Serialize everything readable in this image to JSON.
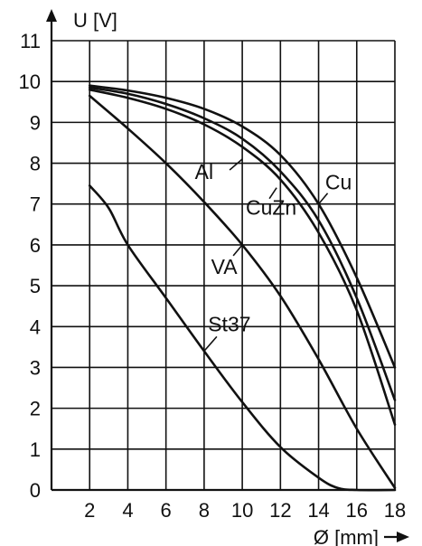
{
  "chart_data": {
    "type": "line",
    "ylabel": "U [V]",
    "xlabel": "Ø [mm]",
    "xlim": [
      0,
      18
    ],
    "ylim": [
      0,
      11
    ],
    "grid": true,
    "x_ticks": [
      2,
      4,
      6,
      8,
      10,
      12,
      14,
      16,
      18
    ],
    "y_ticks": [
      0,
      1,
      2,
      3,
      4,
      5,
      6,
      7,
      8,
      9,
      10,
      11
    ],
    "series": [
      {
        "name": "Cu",
        "points": [
          [
            2,
            9.9
          ],
          [
            4,
            9.78
          ],
          [
            6,
            9.6
          ],
          [
            8,
            9.33
          ],
          [
            10,
            8.9
          ],
          [
            12,
            8.2
          ],
          [
            14,
            7.0
          ],
          [
            16,
            5.2
          ],
          [
            18,
            3.0
          ]
        ]
      },
      {
        "name": "Al",
        "points": [
          [
            2,
            9.85
          ],
          [
            4,
            9.7
          ],
          [
            6,
            9.45
          ],
          [
            8,
            9.1
          ],
          [
            10,
            8.6
          ],
          [
            12,
            7.8
          ],
          [
            14,
            6.6
          ],
          [
            16,
            4.7
          ],
          [
            18,
            2.2
          ]
        ]
      },
      {
        "name": "CuZn",
        "points": [
          [
            2,
            9.8
          ],
          [
            4,
            9.6
          ],
          [
            6,
            9.33
          ],
          [
            8,
            8.95
          ],
          [
            10,
            8.4
          ],
          [
            12,
            7.6
          ],
          [
            14,
            6.3
          ],
          [
            16,
            4.4
          ],
          [
            18,
            1.6
          ]
        ]
      },
      {
        "name": "VA",
        "points": [
          [
            2,
            9.65
          ],
          [
            4,
            8.85
          ],
          [
            6,
            8.0
          ],
          [
            8,
            7.05
          ],
          [
            10,
            6.0
          ],
          [
            12,
            4.75
          ],
          [
            14,
            3.2
          ],
          [
            16,
            1.5
          ],
          [
            18,
            0.05
          ]
        ]
      },
      {
        "name": "St37",
        "points": [
          [
            2,
            7.45
          ],
          [
            3,
            6.9
          ],
          [
            4,
            6.0
          ],
          [
            6,
            4.7
          ],
          [
            8,
            3.4
          ],
          [
            10,
            2.15
          ],
          [
            12,
            1.05
          ],
          [
            14,
            0.3
          ],
          [
            15,
            0.05
          ],
          [
            16,
            0.0
          ],
          [
            18,
            0.0
          ]
        ]
      }
    ],
    "annotations": [
      {
        "text": "Al",
        "target": [
          10,
          8.1
        ]
      },
      {
        "text": "CuZn",
        "target": [
          11.8,
          7.4
        ]
      },
      {
        "text": "Cu",
        "target": [
          14,
          7.0
        ]
      },
      {
        "text": "VA",
        "target": [
          10,
          6.0
        ]
      },
      {
        "text": "St37",
        "target": [
          8,
          3.4
        ]
      }
    ]
  }
}
